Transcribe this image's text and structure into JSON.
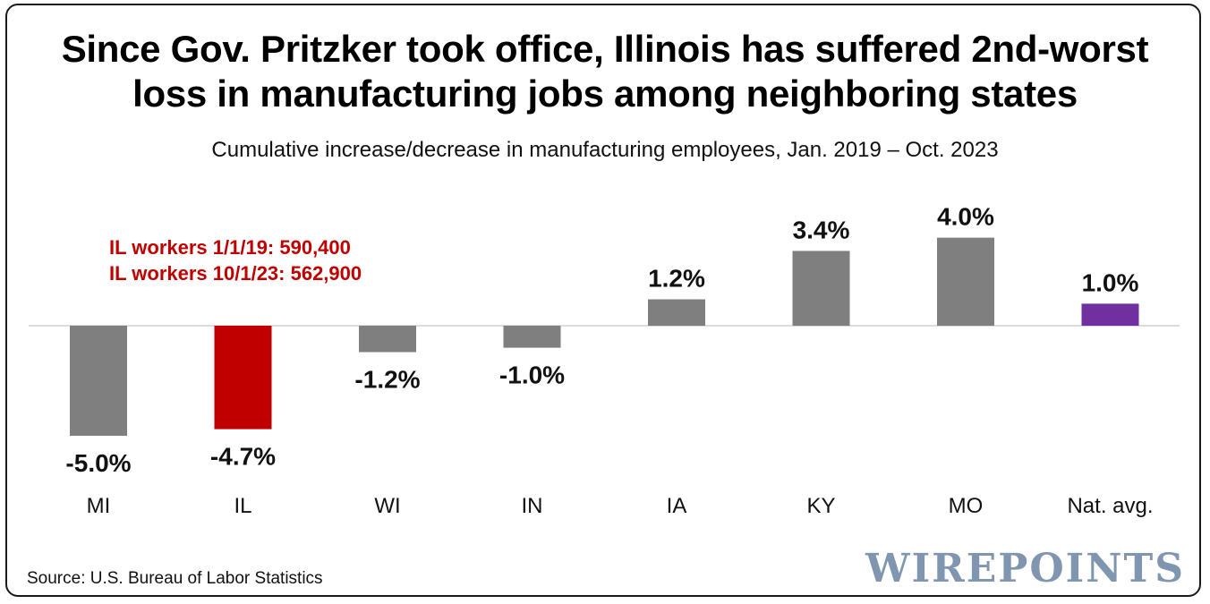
{
  "title_line1": "Since Gov. Pritzker took office, Illinois has suffered 2nd-worst",
  "title_line2": "loss in manufacturing jobs among neighboring states",
  "subtitle": "Cumulative increase/decrease in manufacturing employees, Jan. 2019 – Oct. 2023",
  "annotation": {
    "line1": "IL workers 1/1/19: 590,400",
    "line2": "IL workers 10/1/23: 562,900"
  },
  "source": "Source: U.S. Bureau of Labor Statistics",
  "logo": "WIREPOINTS",
  "colors": {
    "default_bar": "#7f7f7f",
    "highlight_bar": "#c00000",
    "national_bar": "#7030a0",
    "axis": "#d0d0d0",
    "annotation": "#c00000",
    "logo": "#8096b0"
  },
  "chart_data": {
    "type": "bar",
    "title": "Since Gov. Pritzker took office, Illinois has suffered 2nd-worst loss in manufacturing jobs among neighboring states",
    "subtitle": "Cumulative increase/decrease in manufacturing employees, Jan. 2019 – Oct. 2023",
    "xlabel": "",
    "ylabel": "",
    "categories": [
      "MI",
      "IL",
      "WI",
      "IN",
      "IA",
      "KY",
      "MO",
      "Nat. avg."
    ],
    "values": [
      -5.0,
      -4.7,
      -1.2,
      -1.0,
      1.2,
      3.4,
      4.0,
      1.0
    ],
    "labels": [
      "-5.0%",
      "-4.7%",
      "-1.2%",
      "-1.0%",
      "1.2%",
      "3.4%",
      "4.0%",
      "1.0%"
    ],
    "bar_colors": [
      "#7f7f7f",
      "#c00000",
      "#7f7f7f",
      "#7f7f7f",
      "#7f7f7f",
      "#7f7f7f",
      "#7f7f7f",
      "#7030a0"
    ],
    "grid": false,
    "legend": "none"
  }
}
